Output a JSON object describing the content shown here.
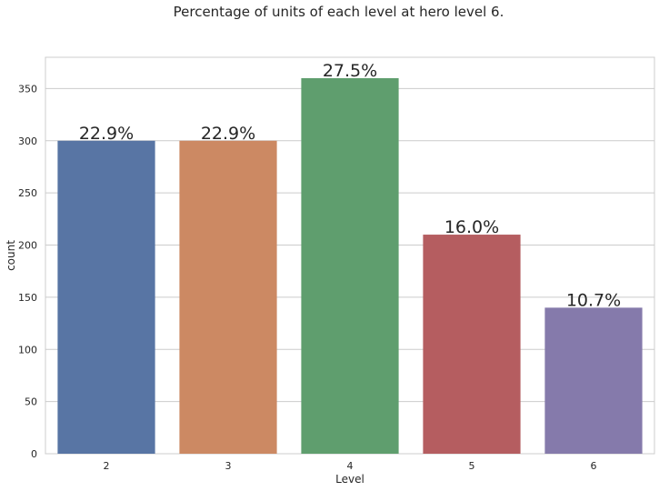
{
  "chart_data": {
    "type": "bar",
    "title": "Percentage of units of each level at hero level 6.",
    "xlabel": "Level",
    "ylabel": "count",
    "categories": [
      "2",
      "3",
      "4",
      "5",
      "6"
    ],
    "values": [
      300,
      300,
      360,
      210,
      140
    ],
    "data_labels": [
      "22.9%",
      "22.9%",
      "27.5%",
      "16.0%",
      "10.7%"
    ],
    "colors": [
      "#5875a4",
      "#cc8963",
      "#5f9e6e",
      "#b55d60",
      "#857aab"
    ],
    "ylim": [
      0,
      380
    ],
    "yticks": [
      0,
      50,
      100,
      150,
      200,
      250,
      300,
      350
    ],
    "grid": true,
    "legend": "none"
  }
}
